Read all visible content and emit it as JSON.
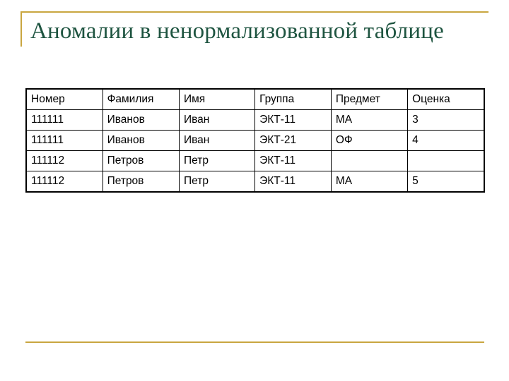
{
  "title": "Аномалии в ненормализованной таблице",
  "colors": {
    "accent_line": "#c9a640",
    "title": "#1e5440"
  },
  "table": {
    "headers": [
      "Номер",
      "Фамилия",
      "Имя",
      "Группа",
      "Предмет",
      "Оценка"
    ],
    "rows": [
      [
        "111111",
        "Иванов",
        "Иван",
        "ЭКТ-11",
        "МА",
        "3"
      ],
      [
        "111111",
        "Иванов",
        "Иван",
        "ЭКТ-21",
        "ОФ",
        "4"
      ],
      [
        "111112",
        "Петров",
        "Петр",
        "ЭКТ-11",
        "",
        ""
      ],
      [
        "111112",
        "Петров",
        "Петр",
        "ЭКТ-11",
        "МА",
        "5"
      ]
    ]
  }
}
